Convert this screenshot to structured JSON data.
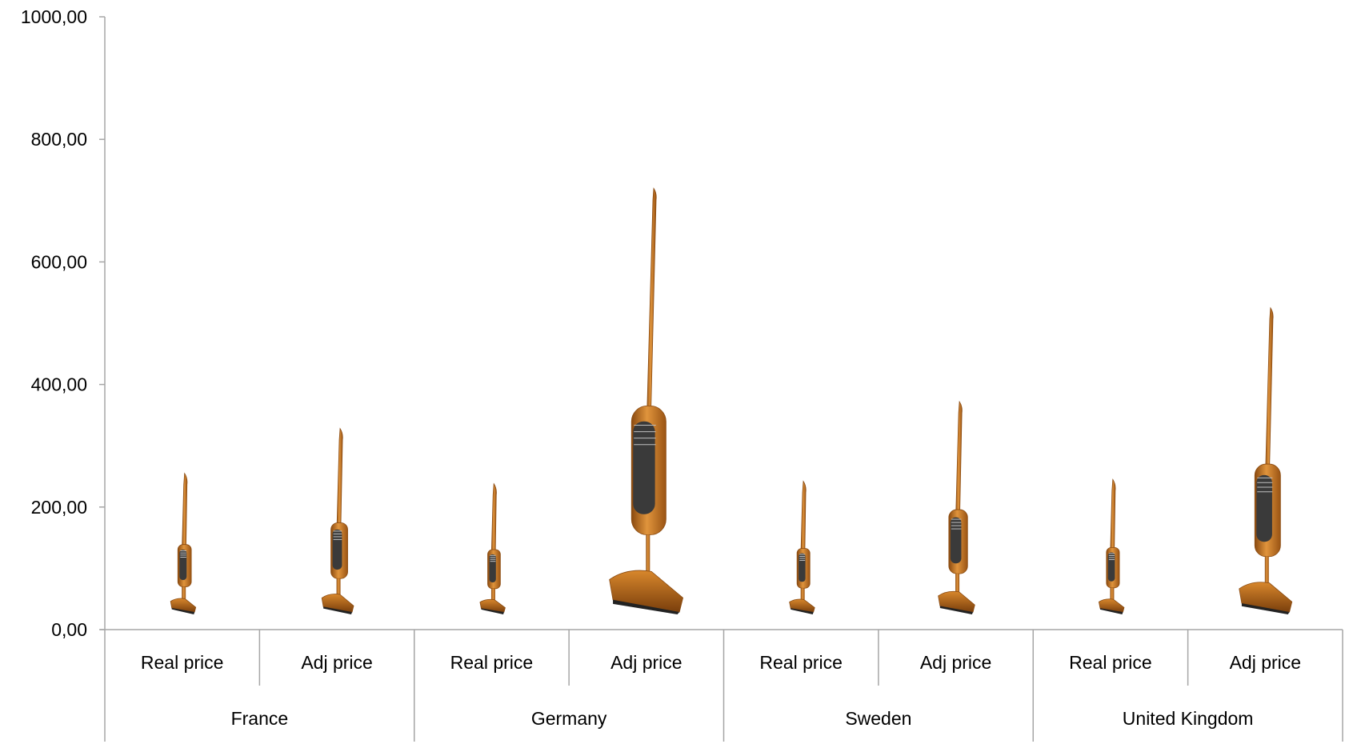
{
  "chart_data": {
    "type": "bar",
    "title": "",
    "xlabel": "",
    "ylabel": "",
    "ylim": [
      0,
      1000
    ],
    "yticks": [
      "0,00",
      "200,00",
      "400,00",
      "600,00",
      "800,00",
      "1000,00"
    ],
    "groups": [
      "France",
      "Germany",
      "Sweden",
      "United Kingdom"
    ],
    "categories": [
      "Real price",
      "Adj price"
    ],
    "series": [
      {
        "group": "France",
        "values": [
          255,
          328
        ]
      },
      {
        "group": "Germany",
        "values": [
          238,
          720
        ]
      },
      {
        "group": "Sweden",
        "values": [
          242,
          372
        ]
      },
      {
        "group": "United Kingdom",
        "values": [
          245,
          525
        ]
      }
    ],
    "bar_style": "pictograph",
    "bar_icon": "stick-vacuum-icon",
    "colors": {
      "body": "#c8731f",
      "body_dark": "#8a4a10",
      "handle": "#3a3a3a",
      "axis": "#a6a6a6"
    },
    "grid": false,
    "legend": "none"
  }
}
